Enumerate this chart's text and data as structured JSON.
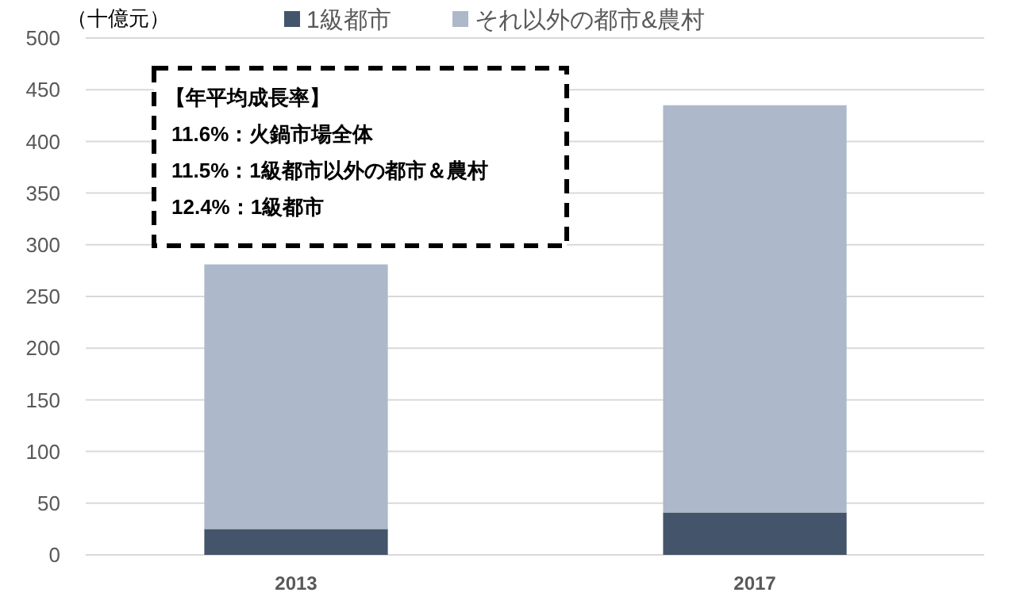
{
  "chart_data": {
    "type": "bar",
    "ylabel": "（十億元）",
    "categories": [
      "2013",
      "2017"
    ],
    "stacked": true,
    "series": [
      {
        "name": "1級都市",
        "color": "#44546a",
        "values": [
          25,
          41
        ]
      },
      {
        "name": "それ以外の都市&農村",
        "color": "#adb9ca",
        "values": [
          256,
          394
        ]
      }
    ],
    "ylim": [
      0,
      500
    ],
    "yticks": [
      0,
      50,
      100,
      150,
      200,
      250,
      300,
      350,
      400,
      450,
      500
    ],
    "grid": "y",
    "legend": "top",
    "annotations": [
      "【年平均成長率】",
      "11.6%：火鍋市場全体",
      "11.5%：1級都市以外の都市＆農村",
      "12.4%：1級都市"
    ]
  }
}
